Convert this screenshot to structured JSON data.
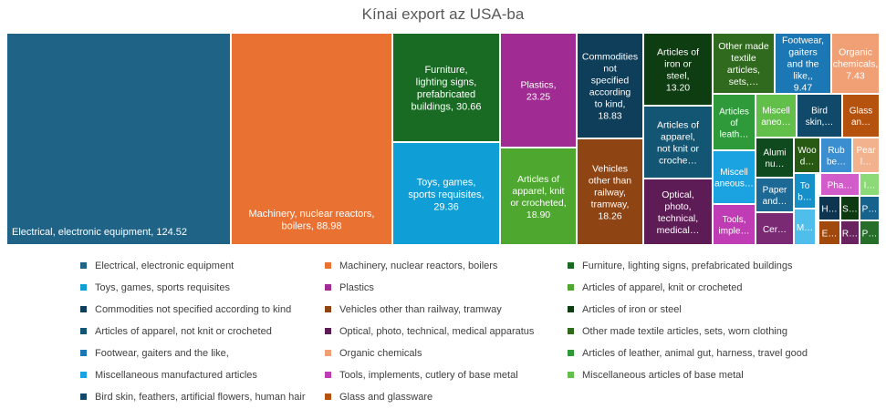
{
  "chart_data": {
    "type": "treemap",
    "title": "Kínai export az USA-ba",
    "legend_position": "bottom",
    "items": [
      {
        "name": "Electrical, electronic equipment",
        "label": "Electrical, electronic equipment, 124.52",
        "value": 124.52,
        "color": "#1F6387"
      },
      {
        "name": "Machinery, nuclear reactors, boilers",
        "label": "Machinery, nuclear reactors, boilers, 88.98",
        "value": 88.98,
        "color": "#E97132"
      },
      {
        "name": "Furniture, lighting signs, prefabricated buildings",
        "label": "Furniture, lighting signs, prefabricated buildings, 30.66",
        "value": 30.66,
        "color": "#196B24"
      },
      {
        "name": "Toys, games, sports requisites",
        "label": "Toys, games, sports requisites, 29.36",
        "value": 29.36,
        "color": "#0F9ED5"
      },
      {
        "name": "Plastics",
        "label": "Plastics, 23.25",
        "value": 23.25,
        "color": "#A02B93"
      },
      {
        "name": "Articles of apparel, knit or crocheted",
        "label": "Articles of apparel, knit or crocheted, 18.90",
        "value": 18.9,
        "color": "#4EA72E"
      },
      {
        "name": "Commodities not specified according to kind",
        "label": "Commodities not specified according to kind, 18.83",
        "value": 18.83,
        "color": "#0E3E59"
      },
      {
        "name": "Vehicles other than railway, tramway",
        "label": "Vehicles other than railway, tramway, 18.26",
        "value": 18.26,
        "color": "#8F4513"
      },
      {
        "name": "Articles of iron or steel",
        "label": "Articles of iron or steel, 13.20",
        "value": 13.2,
        "color": "#0F3D12"
      },
      {
        "name": "Articles of apparel, not knit or crocheted",
        "label": "Articles of apparel, not knit or croche…",
        "value": 12.6,
        "color": "#135674"
      },
      {
        "name": "Optical, photo, technical, medical apparatus",
        "label": "Optical, photo, technical, medical…",
        "value": 12.0,
        "color": "#5E1C56"
      },
      {
        "name": "Other made textile articles, sets, worn clothing",
        "label": "Other made textile articles, sets,…",
        "value": 10.1,
        "color": "#2F6A1E"
      },
      {
        "name": "Footwear, gaiters and the like,",
        "label": "Footwear, gaiters and the like,, 9.47",
        "value": 9.47,
        "color": "#1B78B5"
      },
      {
        "name": "Organic chemicals",
        "label": "Organic chemicals, 7.43",
        "value": 7.43,
        "color": "#F1A075"
      },
      {
        "name": "Articles of leather, animal gut, harness, travel good",
        "label": "Articles of leath…",
        "value": 6.2,
        "color": "#2E9A3A"
      },
      {
        "name": "Miscellaneous manufactured articles",
        "label": "Miscell aneous…",
        "value": 5.4,
        "color": "#1AA3E0"
      },
      {
        "name": "Tools, implements, cutlery of base metal",
        "label": "Tools, imple…",
        "value": 5.0,
        "color": "#C03CB5"
      },
      {
        "name": "Miscellaneous articles of base metal",
        "label": "Miscell aneo…",
        "value": 4.6,
        "color": "#62C04A"
      },
      {
        "name": "Bird skin, feathers, artificial flowers, human hair",
        "label": "Bird skin,…",
        "value": 4.2,
        "color": "#10496A"
      },
      {
        "name": "Glass and glassware",
        "label": "Glass an…",
        "value": 3.6,
        "color": "#B5520E"
      },
      {
        "name": "",
        "label": "Alumi nu…",
        "value": 3.3,
        "color": "#0F4A1E"
      },
      {
        "name": "",
        "label": "Paper and…",
        "value": 3.2,
        "color": "#1D6996"
      },
      {
        "name": "",
        "label": "Cer…",
        "value": 2.9,
        "color": "#7A2A73"
      },
      {
        "name": "",
        "label": "Woo d…",
        "value": 2.7,
        "color": "#285A14"
      },
      {
        "name": "",
        "label": "To b…",
        "value": 2.6,
        "color": "#1590C8"
      },
      {
        "name": "",
        "label": "M…",
        "value": 2.2,
        "color": "#50BEEB"
      },
      {
        "name": "",
        "label": "Rub be…",
        "value": 2.4,
        "color": "#3B8ED0"
      },
      {
        "name": "",
        "label": "Pear l…",
        "value": 2.3,
        "color": "#F3B28E"
      },
      {
        "name": "",
        "label": "Pha…",
        "value": 2.2,
        "color": "#D35CCB"
      },
      {
        "name": "",
        "label": "I…",
        "value": 1.5,
        "color": "#8CD978"
      },
      {
        "name": "",
        "label": "H…",
        "value": 1.4,
        "color": "#0D3550"
      },
      {
        "name": "",
        "label": "S…",
        "value": 1.3,
        "color": "#0E3A12"
      },
      {
        "name": "",
        "label": "P…",
        "value": 1.3,
        "color": "#16638D"
      },
      {
        "name": "",
        "label": "E…",
        "value": 1.2,
        "color": "#A1480C"
      },
      {
        "name": "",
        "label": "R…",
        "value": 1.1,
        "color": "#69245F"
      },
      {
        "name": "",
        "label": "P…",
        "value": 1.1,
        "color": "#276E2A"
      }
    ]
  }
}
